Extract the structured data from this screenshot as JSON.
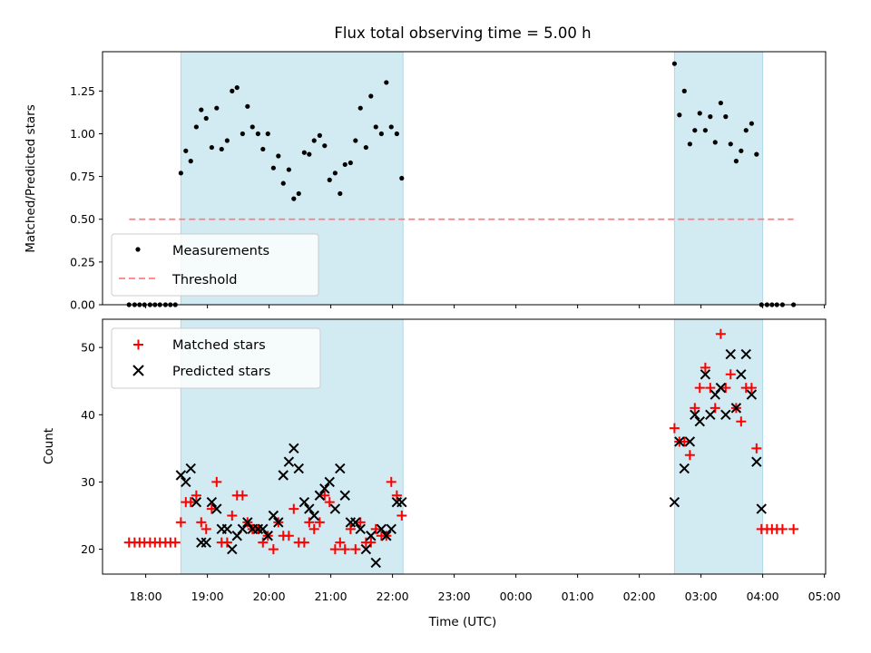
{
  "chart_data": {
    "title": "Flux total observing time = 5.00 h",
    "xlabel": "Time (UTC)",
    "xtick_labels": [
      "18:00",
      "19:00",
      "20:00",
      "21:00",
      "22:00",
      "23:00",
      "00:00",
      "01:00",
      "02:00",
      "03:00",
      "04:00",
      "05:00"
    ],
    "xtick_values_hours": [
      18,
      19,
      20,
      21,
      22,
      23,
      24,
      25,
      26,
      27,
      28,
      29
    ],
    "xlim_hours": [
      17.3,
      29.02
    ],
    "shaded_intervals_hours": [
      [
        18.57,
        22.17
      ],
      [
        26.57,
        28.0
      ]
    ],
    "shade_color": "#add8e6",
    "panels": [
      {
        "type": "scatter",
        "ylabel": "Matched/Predicted stars",
        "ylim": [
          0,
          1.48
        ],
        "ytick_values": [
          0.0,
          0.25,
          0.5,
          0.75,
          1.0,
          1.25
        ],
        "ytick_labels": [
          "0.00",
          "0.25",
          "0.50",
          "0.75",
          "1.00",
          "1.25"
        ],
        "legend": {
          "loc": "lower left",
          "entries": [
            "Measurements",
            "Threshold"
          ]
        },
        "threshold": {
          "name": "Threshold",
          "value": 0.5,
          "x_range_hours": [
            17.73,
            28.5
          ],
          "color": "#ff7f7f",
          "style": "dashed"
        },
        "series": [
          {
            "name": "Measurements",
            "marker": "dot",
            "color": "#000000",
            "x_hours": [
              17.73,
              17.82,
              17.9,
              17.98,
              18.07,
              18.15,
              18.23,
              18.32,
              18.4,
              18.48,
              18.57,
              18.65,
              18.73,
              18.82,
              18.9,
              18.98,
              19.07,
              19.15,
              19.23,
              19.32,
              19.4,
              19.48,
              19.57,
              19.65,
              19.73,
              19.82,
              19.9,
              19.98,
              20.07,
              20.15,
              20.23,
              20.32,
              20.4,
              20.48,
              20.57,
              20.65,
              20.73,
              20.82,
              20.9,
              20.98,
              21.07,
              21.15,
              21.23,
              21.32,
              21.4,
              21.48,
              21.57,
              21.65,
              21.73,
              21.82,
              21.9,
              21.98,
              22.07,
              22.15,
              26.57,
              26.65,
              26.73,
              26.82,
              26.9,
              26.98,
              27.07,
              27.15,
              27.23,
              27.32,
              27.4,
              27.48,
              27.57,
              27.65,
              27.73,
              27.82,
              27.9,
              27.98,
              28.07,
              28.15,
              28.23,
              28.32,
              28.5
            ],
            "y": [
              0,
              0,
              0,
              0,
              0,
              0,
              0,
              0,
              0,
              0,
              0.77,
              0.9,
              0.84,
              1.04,
              1.14,
              1.09,
              0.92,
              1.15,
              0.91,
              0.96,
              1.25,
              1.27,
              1.0,
              1.16,
              1.04,
              1.0,
              0.91,
              1.0,
              0.8,
              0.87,
              0.71,
              0.79,
              0.62,
              0.65,
              0.89,
              0.88,
              0.96,
              0.99,
              0.93,
              0.73,
              0.77,
              0.65,
              0.82,
              0.83,
              0.96,
              1.15,
              0.92,
              1.22,
              1.04,
              1.0,
              1.3,
              1.04,
              1.0,
              0.74,
              1.41,
              1.11,
              1.25,
              0.94,
              1.02,
              1.12,
              1.02,
              1.1,
              0.95,
              1.18,
              1.1,
              0.94,
              0.84,
              0.9,
              1.02,
              1.06,
              0.88,
              0,
              0,
              0,
              0,
              0,
              0
            ]
          }
        ]
      },
      {
        "type": "scatter",
        "ylabel": "Count",
        "ylim": [
          16.3,
          54.2
        ],
        "ytick_values": [
          20,
          30,
          40,
          50
        ],
        "ytick_labels": [
          "20",
          "30",
          "40",
          "50"
        ],
        "legend": {
          "loc": "upper left",
          "entries": [
            "Matched stars",
            "Predicted stars"
          ]
        },
        "series": [
          {
            "name": "Matched stars",
            "marker": "plus",
            "color": "#ff0000",
            "x_hours": [
              17.73,
              17.82,
              17.9,
              17.98,
              18.07,
              18.15,
              18.23,
              18.32,
              18.4,
              18.48,
              18.57,
              18.65,
              18.73,
              18.82,
              18.9,
              18.98,
              19.07,
              19.15,
              19.23,
              19.32,
              19.4,
              19.48,
              19.57,
              19.65,
              19.73,
              19.82,
              19.9,
              19.98,
              20.07,
              20.15,
              20.23,
              20.32,
              20.4,
              20.48,
              20.57,
              20.65,
              20.73,
              20.82,
              20.9,
              20.98,
              21.07,
              21.15,
              21.23,
              21.32,
              21.4,
              21.48,
              21.57,
              21.65,
              21.73,
              21.82,
              21.9,
              21.98,
              22.07,
              22.15,
              26.57,
              26.65,
              26.73,
              26.82,
              26.9,
              26.98,
              27.07,
              27.15,
              27.23,
              27.32,
              27.4,
              27.48,
              27.57,
              27.65,
              27.73,
              27.82,
              27.9,
              27.98,
              28.07,
              28.15,
              28.23,
              28.32,
              28.5
            ],
            "y": [
              21,
              21,
              21,
              21,
              21,
              21,
              21,
              21,
              21,
              21,
              24,
              27,
              27,
              28,
              24,
              23,
              26,
              30,
              21,
              21,
              25,
              28,
              28,
              24,
              23,
              23,
              21,
              22,
              20,
              24,
              22,
              22,
              26,
              21,
              21,
              24,
              23,
              24,
              28,
              27,
              20,
              21,
              20,
              23,
              20,
              24,
              21,
              21,
              23,
              22,
              22,
              30,
              28,
              25,
              38,
              36,
              36,
              34,
              41,
              44,
              47,
              44,
              41,
              52,
              44,
              46,
              41,
              39,
              44,
              44,
              35,
              23,
              23,
              23,
              23,
              23,
              23
            ]
          },
          {
            "name": "Predicted stars",
            "marker": "x",
            "color": "#000000",
            "x_hours": [
              18.57,
              18.65,
              18.73,
              18.82,
              18.9,
              18.98,
              19.07,
              19.15,
              19.23,
              19.32,
              19.4,
              19.48,
              19.57,
              19.65,
              19.73,
              19.82,
              19.9,
              19.98,
              20.07,
              20.15,
              20.23,
              20.32,
              20.4,
              20.48,
              20.57,
              20.65,
              20.73,
              20.82,
              20.9,
              20.98,
              21.07,
              21.15,
              21.23,
              21.32,
              21.4,
              21.48,
              21.57,
              21.65,
              21.73,
              21.82,
              21.9,
              21.98,
              22.07,
              22.15,
              26.57,
              26.65,
              26.73,
              26.82,
              26.9,
              26.98,
              27.07,
              27.15,
              27.23,
              27.32,
              27.4,
              27.48,
              27.57,
              27.65,
              27.73,
              27.82,
              27.9,
              27.98
            ],
            "y": [
              31,
              30,
              32,
              27,
              21,
              21,
              27,
              26,
              23,
              23,
              20,
              22,
              23,
              24,
              23,
              23,
              23,
              22,
              25,
              24,
              31,
              33,
              35,
              32,
              27,
              26,
              25,
              28,
              29,
              30,
              26,
              32,
              28,
              24,
              24,
              23,
              20,
              22,
              18,
              23,
              22,
              23,
              27,
              27,
              27,
              36,
              32,
              36,
              40,
              39,
              46,
              40,
              43,
              44,
              40,
              49,
              41,
              46,
              49,
              43,
              33,
              26
            ]
          }
        ]
      }
    ]
  }
}
